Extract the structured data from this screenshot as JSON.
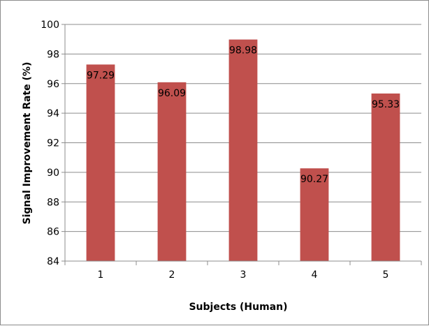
{
  "chart_data": {
    "type": "bar",
    "categories": [
      "1",
      "2",
      "3",
      "4",
      "5"
    ],
    "values": [
      97.29,
      96.09,
      98.98,
      90.27,
      95.33
    ],
    "data_labels": [
      "97.29",
      "96.09",
      "98.98",
      "90.27",
      "95.33"
    ],
    "xlabel": "Subjects (Human)",
    "ylabel": "Signal Improvement Rate  (%)",
    "ylim": [
      84,
      100
    ],
    "yticks": [
      "84",
      "86",
      "88",
      "90",
      "92",
      "94",
      "96",
      "98",
      "100"
    ],
    "grid": true,
    "legend": "none",
    "bar_color": "#c0504d",
    "grid_color": "#8c8c8c"
  }
}
